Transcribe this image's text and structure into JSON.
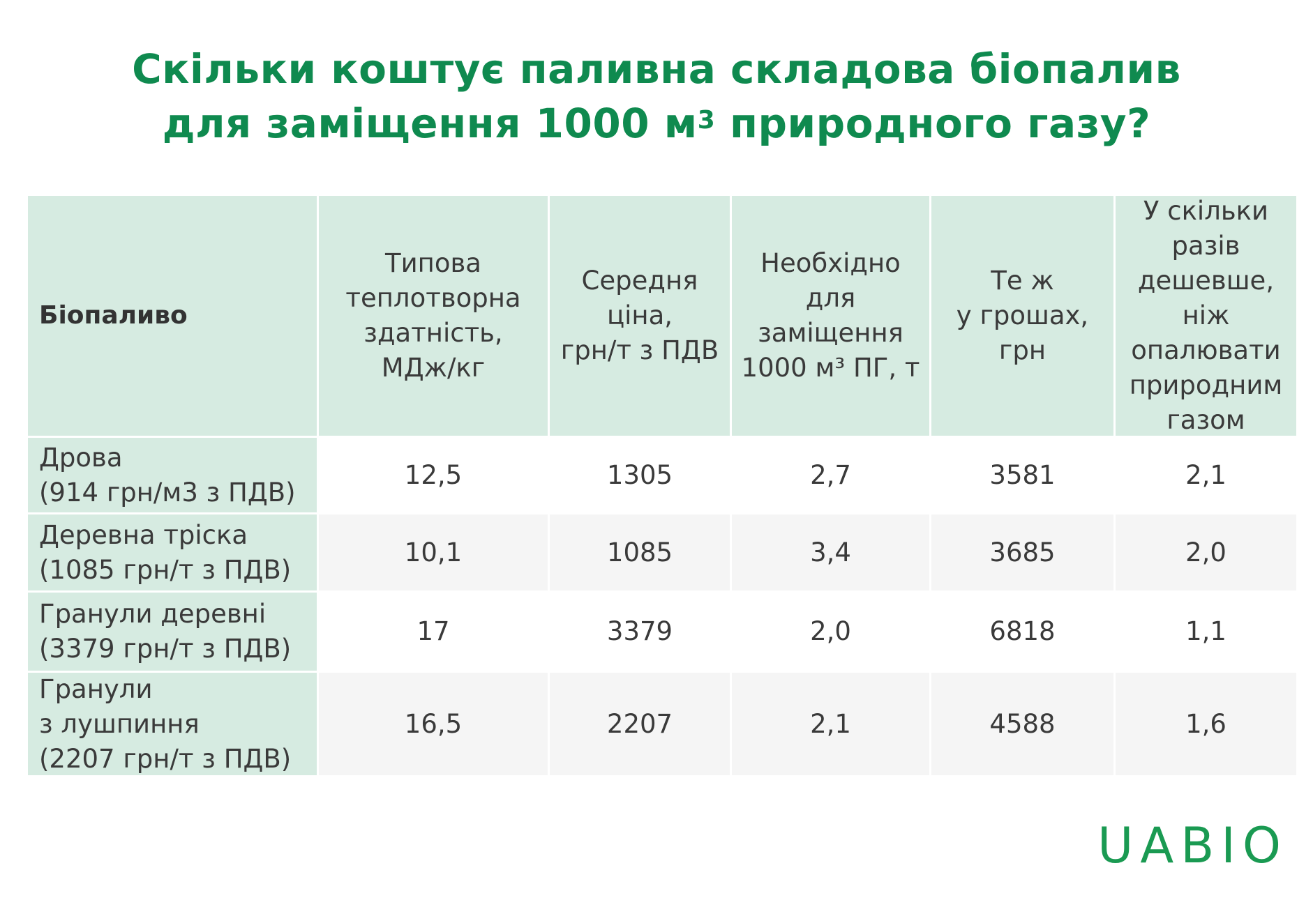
{
  "title": {
    "line1": "Скільки коштує паливна складова біопалив",
    "line2_prefix": "для заміщення 1000 м",
    "line2_sup": "3",
    "line2_suffix": " природного газу?"
  },
  "table": {
    "headers": [
      "Біопаливо",
      "Типова\nтеплотворна\nздатність,\nМДж/кг",
      "Середня\nціна,\nгрн/т з ПДВ",
      "Необхідно\nдля\nзаміщення\n1000 м³ ПГ, т",
      "Те ж\nу грошах,\nгрн",
      "У скільки\nразів\nдешевше,\nніж\nопалювати\nприродним\nгазом"
    ],
    "rows": [
      {
        "name": "Дрова\n(914 грн/м3 з ПДВ)",
        "values": [
          "12,5",
          "1305",
          "2,7",
          "3581",
          "2,1"
        ]
      },
      {
        "name": "Деревна тріска\n(1085 грн/т з ПДВ)",
        "values": [
          "10,1",
          "1085",
          "3,4",
          "3685",
          "2,0"
        ]
      },
      {
        "name": "Гранули деревні\n(3379 грн/т з ПДВ)",
        "values": [
          "17",
          "3379",
          "2,0",
          "6818",
          "1,1"
        ]
      },
      {
        "name": "Гранули\nз лушпиння\n(2207 грн/т з ПДВ)",
        "values": [
          "16,5",
          "2207",
          "2,1",
          "4588",
          "1,6"
        ]
      }
    ]
  },
  "logo": "UABIO",
  "colors": {
    "title": "#0f8a4f",
    "header_bg": "#d6ebe1",
    "row_alt_bg": "#f5f5f5",
    "logo": "#1a9a52"
  }
}
